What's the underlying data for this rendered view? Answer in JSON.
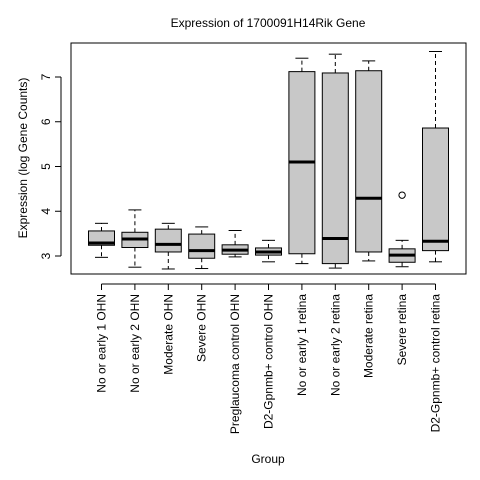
{
  "chart_data": {
    "type": "box",
    "title": "Expression of  1700091H14Rik Gene",
    "xlabel": "Group",
    "ylabel": "Expression (log Gene Counts)",
    "ylim": [
      2.6,
      7.75
    ],
    "yticks": [
      3,
      4,
      5,
      6,
      7
    ],
    "grid": false,
    "box_fill": "#c8c8c8",
    "line_color": "#000000",
    "categories": [
      "No or early 1 OHN",
      "No or early 2 OHN",
      "Moderate OHN",
      "Severe OHN",
      "Preglaucoma control OHN",
      "D2-Gpnmb+ control OHN",
      "No or early 1 retina",
      "No or early 2 retina",
      "Moderate retina",
      "Severe retina",
      "D2-Gpnmb+ control retina"
    ],
    "boxes": [
      {
        "whisker_low": 2.97,
        "q1": 3.24,
        "median": 3.29,
        "q3": 3.56,
        "whisker_high": 3.73,
        "outliers": []
      },
      {
        "whisker_low": 2.75,
        "q1": 3.19,
        "median": 3.38,
        "q3": 3.53,
        "whisker_high": 4.03,
        "outliers": []
      },
      {
        "whisker_low": 2.71,
        "q1": 3.09,
        "median": 3.26,
        "q3": 3.6,
        "whisker_high": 3.73,
        "outliers": []
      },
      {
        "whisker_low": 2.72,
        "q1": 2.95,
        "median": 3.12,
        "q3": 3.49,
        "whisker_high": 3.65,
        "outliers": []
      },
      {
        "whisker_low": 2.98,
        "q1": 3.04,
        "median": 3.13,
        "q3": 3.25,
        "whisker_high": 3.57,
        "outliers": []
      },
      {
        "whisker_low": 2.87,
        "q1": 3.02,
        "median": 3.09,
        "q3": 3.18,
        "whisker_high": 3.35,
        "outliers": []
      },
      {
        "whisker_low": 2.83,
        "q1": 3.05,
        "median": 5.1,
        "q3": 7.12,
        "whisker_high": 7.42,
        "outliers": []
      },
      {
        "whisker_low": 2.73,
        "q1": 2.83,
        "median": 3.39,
        "q3": 7.09,
        "whisker_high": 7.51,
        "outliers": []
      },
      {
        "whisker_low": 2.89,
        "q1": 3.09,
        "median": 4.29,
        "q3": 7.14,
        "whisker_high": 7.36,
        "outliers": []
      },
      {
        "whisker_low": 2.76,
        "q1": 2.86,
        "median": 3.02,
        "q3": 3.16,
        "whisker_high": 3.35,
        "outliers": [
          4.36
        ]
      },
      {
        "whisker_low": 2.87,
        "q1": 3.12,
        "median": 3.33,
        "q3": 5.86,
        "whisker_high": 7.57,
        "outliers": []
      }
    ]
  }
}
